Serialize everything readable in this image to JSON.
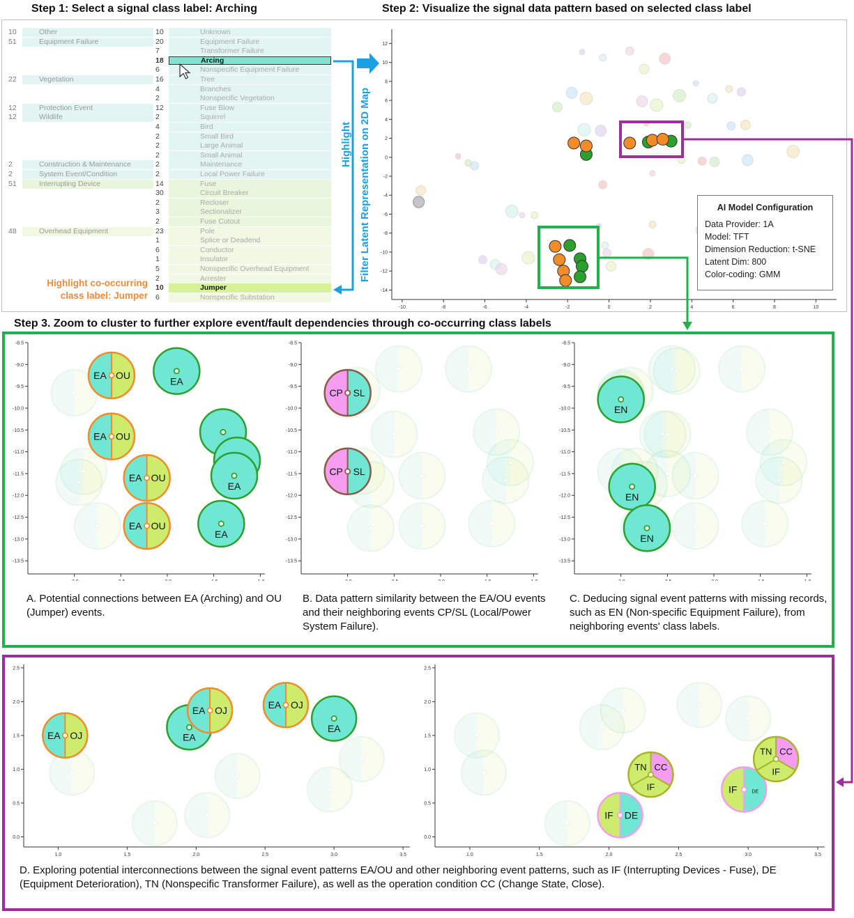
{
  "step1": {
    "title": "Step 1: Select a signal class label: Arching",
    "parents": [
      {
        "count": "10",
        "label": "Other",
        "row": 0,
        "color": "#e2f5f3"
      },
      {
        "count": "51",
        "label": "Equipment Failure",
        "row": 1,
        "color": "#e2f5f3"
      },
      {
        "count": "22",
        "label": "Vegetation",
        "row": 5,
        "color": "#e2f5f3"
      },
      {
        "count": "12",
        "label": "Protection Event",
        "row": 8,
        "color": "#e2f5f3"
      },
      {
        "count": "12",
        "label": "Wildlife",
        "row": 9,
        "color": "#e2f5f3"
      },
      {
        "count": "2",
        "label": "Construction & Maintenance",
        "row": 14,
        "color": "#e2f5f3"
      },
      {
        "count": "2",
        "label": "System Event/Condition",
        "row": 15,
        "color": "#e2f5f3"
      },
      {
        "count": "51",
        "label": "Interrupting Device",
        "row": 16,
        "color": "#eaf6dc"
      },
      {
        "count": "48",
        "label": "Overhead Equipment",
        "row": 21,
        "color": "#f1f8e3"
      }
    ],
    "children": [
      {
        "count": "10",
        "label": "Unknown",
        "color": "#e2f5f3"
      },
      {
        "count": "20",
        "label": "Equipment Failure",
        "color": "#e2f5f3"
      },
      {
        "count": "7",
        "label": "Transformer Failure",
        "color": "#e2f5f3"
      },
      {
        "count": "18",
        "label": "Arcing",
        "color": "#7fe3cf",
        "selected": true
      },
      {
        "count": "6",
        "label": "Nonspecific Equipment Failure",
        "color": "#e2f5f3"
      },
      {
        "count": "16",
        "label": "Tree",
        "color": "#e2f5f3"
      },
      {
        "count": "4",
        "label": "Branches",
        "color": "#e2f5f3"
      },
      {
        "count": "2",
        "label": "Nonspecific Vegetation",
        "color": "#e2f5f3"
      },
      {
        "count": "12",
        "label": "Fuse Blow",
        "color": "#e2f5f3"
      },
      {
        "count": "2",
        "label": "Squirrel",
        "color": "#e2f5f3"
      },
      {
        "count": "4",
        "label": "Bird",
        "color": "#e2f5f3"
      },
      {
        "count": "2",
        "label": "Small Bird",
        "color": "#e2f5f3"
      },
      {
        "count": "2",
        "label": "Large Animal",
        "color": "#e2f5f3"
      },
      {
        "count": "2",
        "label": "Small Animal",
        "color": "#e2f5f3"
      },
      {
        "count": "2",
        "label": "Maintenance",
        "color": "#e2f5f3"
      },
      {
        "count": "2",
        "label": "Local Power Failure",
        "color": "#e2f5f3"
      },
      {
        "count": "14",
        "label": "Fuse",
        "color": "#eaf6dc"
      },
      {
        "count": "30",
        "label": "Circuit Breaker",
        "color": "#eaf6dc"
      },
      {
        "count": "2",
        "label": "Recloser",
        "color": "#eaf6dc"
      },
      {
        "count": "3",
        "label": "Sectionalizer",
        "color": "#eaf6dc"
      },
      {
        "count": "2",
        "label": "Fuse Cutout",
        "color": "#eaf6dc"
      },
      {
        "count": "23",
        "label": "Pole",
        "color": "#f1f8e3"
      },
      {
        "count": "1",
        "label": "Splice or Deadend",
        "color": "#f1f8e3"
      },
      {
        "count": "6",
        "label": "Conductor",
        "color": "#f1f8e3"
      },
      {
        "count": "1",
        "label": "Insulator",
        "color": "#f1f8e3"
      },
      {
        "count": "5",
        "label": "Nonspecific Overhead Equipment",
        "color": "#f1f8e3"
      },
      {
        "count": "2",
        "label": "Arrester",
        "color": "#f1f8e3"
      },
      {
        "count": "10",
        "label": "Jumper",
        "color": "#d7f295",
        "cooccur": true
      },
      {
        "count": "6",
        "label": "Nonspecific Substation",
        "color": "#f1f8e3"
      }
    ],
    "highlight_note_line1": "Highlight co-occurring",
    "highlight_note_line2": "class label: Jumper",
    "highlight_label": "Highlight",
    "filter_label": "Filter Latent Representation on 2D Map"
  },
  "step2": {
    "title": "Step 2: Visualize the signal data pattern based on selected class label",
    "config": {
      "title": "AI Model Configuration",
      "lines": [
        "Data Provider: 1A",
        "Model: TFT",
        "Dimension Reduction: t-SNE",
        "Latent Dim: 800",
        "Color-coding: GMM"
      ]
    }
  },
  "step3": {
    "title": "Step 3. Zoom to cluster to further explore event/fault dependencies through co-occurring class labels",
    "caption_a": "A. Potential connections between EA (Arching) and OU (Jumper) events.",
    "caption_b": "B. Data pattern similarity between the EA/OU events and their neighboring events CP/SL (Local/Power System Failure).",
    "caption_c": "C. Deducing signal event patterns with missing records, such as EN (Non-specific Equipment Failure), from neighboring events' class labels.",
    "caption_d": "D. Exploring potential interconnections between the signal event patterns EA/OU and other neighboring event patterns, such as IF (Interrupting Devices - Fuse), DE (Equipment Deterioration), TN (Nonspecific Transformer Failure), as well as the operation condition CC (Change State, Close)."
  },
  "colors": {
    "orange": "#f28c28",
    "green": "#2ca02c",
    "teal": "#6fe7d3",
    "lime": "#cdec6b",
    "pink": "#f39cf0",
    "blue": "#1ba1e2",
    "purple": "#9b2f9b",
    "boxgreen": "#21b04b"
  },
  "chart_data": [
    {
      "type": "scatter",
      "name_ref": "Step 2 map",
      "xlim": [
        -10.5,
        11
      ],
      "ylim": [
        -15,
        13.5
      ],
      "xticks": [
        -10,
        -8,
        -6,
        -4,
        -2,
        0,
        2,
        4,
        6,
        8,
        10
      ],
      "yticks": [
        -14,
        -12,
        -10,
        -8,
        -6,
        -4,
        -2,
        0,
        2,
        4,
        6,
        8,
        10,
        12
      ],
      "highlighted_orange": [
        [
          -1.7,
          1.5
        ],
        [
          -1.1,
          1.2
        ],
        [
          1.0,
          1.5
        ],
        [
          2.1,
          1.8
        ],
        [
          2.6,
          1.9
        ],
        [
          -2.6,
          -9.4
        ],
        [
          -2.4,
          -10.8
        ],
        [
          -2.2,
          -12.0
        ],
        [
          -2.1,
          -13.0
        ]
      ],
      "highlighted_green": [
        [
          -1.1,
          0.3
        ],
        [
          1.9,
          1.6
        ],
        [
          3.0,
          1.7
        ],
        [
          -1.9,
          -9.3
        ],
        [
          -1.4,
          -10.7
        ],
        [
          -1.3,
          -11.5
        ],
        [
          -1.4,
          -12.6
        ]
      ],
      "faded": [
        [
          -7.3,
          0.1
        ],
        [
          -6.8,
          -0.6
        ],
        [
          -6.5,
          -0.9
        ],
        [
          -9.1,
          -3.5
        ],
        [
          -9.2,
          -4.8
        ],
        [
          -4.7,
          -5.7
        ],
        [
          -4.2,
          -6.1
        ],
        [
          -3.6,
          -6.1
        ],
        [
          -0.3,
          -2.9
        ],
        [
          -2.5,
          5.3
        ],
        [
          -1.8,
          6.8
        ],
        [
          -1.1,
          6.2
        ],
        [
          -1.3,
          11.1
        ],
        [
          -0.3,
          10.5
        ],
        [
          1.0,
          11.2
        ],
        [
          1.7,
          9.3
        ],
        [
          2.7,
          10.4
        ],
        [
          3.4,
          6.5
        ],
        [
          4.2,
          7.8
        ],
        [
          5.8,
          7.2
        ],
        [
          6.4,
          6.9
        ],
        [
          5.0,
          6.2
        ],
        [
          1.6,
          5.9
        ],
        [
          2.3,
          5.5
        ],
        [
          1.8,
          3.6
        ],
        [
          3.8,
          3.4
        ],
        [
          5.9,
          3.3
        ],
        [
          6.6,
          3.4
        ],
        [
          -0.4,
          2.8
        ],
        [
          -1.2,
          2.9
        ],
        [
          2.1,
          -1.7
        ],
        [
          3.5,
          -0.3
        ],
        [
          4.5,
          -0.4
        ],
        [
          5.1,
          -0.5
        ],
        [
          6.7,
          -0.3
        ],
        [
          8.9,
          0.6
        ],
        [
          -0.5,
          -7.3
        ],
        [
          -0.2,
          -9.3
        ],
        [
          -0.1,
          -10.1
        ],
        [
          0.1,
          -11.5
        ],
        [
          1.9,
          -10.2
        ],
        [
          4.5,
          -7.7
        ],
        [
          5.6,
          -8.4
        ],
        [
          2.1,
          -7.1
        ],
        [
          -6.1,
          -10.8
        ],
        [
          -5.5,
          -11.3
        ],
        [
          -5.2,
          -11.8
        ],
        [
          -3.9,
          -10.6
        ]
      ],
      "xlabel": "",
      "ylabel": ""
    },
    {
      "type": "scatter",
      "name_ref": "Panel A",
      "xlim": [
        -3.5,
        -0.95
      ],
      "ylim": [
        -13.8,
        -8.5
      ],
      "xticks": [
        -3.0,
        -2.5,
        -2.0,
        -1.5,
        -1.0
      ],
      "xticklabels": [
        "-3.0",
        "-2.5",
        "-2.0",
        "-1.5",
        "-1.0"
      ],
      "yticks": [
        -13.5,
        -13.0,
        -12.5,
        -12.0,
        -11.5,
        -11.0,
        -10.5,
        -10.0,
        -9.5,
        -9.0,
        -8.5
      ],
      "yticklabels": [
        "-13.5",
        "-13.0",
        "-12.5",
        "-12.0",
        "-11.5",
        "-11.0",
        "-10.5",
        "-10.0",
        "-9.5",
        "-9.0",
        "-8.5"
      ],
      "points": [
        {
          "x": -2.6,
          "y": -9.25,
          "kind": "split",
          "left": "teal",
          "right": "lime",
          "border": "orange",
          "ll": "EA",
          "rl": "OU"
        },
        {
          "x": -1.9,
          "y": -9.15,
          "kind": "full",
          "fill": "teal",
          "border": "green",
          "bl": "EA"
        },
        {
          "x": -2.6,
          "y": -10.65,
          "kind": "split",
          "left": "teal",
          "right": "lime",
          "border": "orange",
          "ll": "EA",
          "rl": "OU"
        },
        {
          "x": -2.22,
          "y": -11.6,
          "kind": "split",
          "left": "teal",
          "right": "lime",
          "border": "orange",
          "ll": "EA",
          "rl": "OU"
        },
        {
          "x": -2.22,
          "y": -12.7,
          "kind": "split",
          "left": "teal",
          "right": "lime",
          "border": "orange",
          "ll": "EA",
          "rl": "OU"
        },
        {
          "x": -1.4,
          "y": -10.55,
          "kind": "full",
          "fill": "teal",
          "border": "green",
          "bl": ""
        },
        {
          "x": -1.25,
          "y": -11.2,
          "kind": "full",
          "fill": "teal",
          "border": "green",
          "bl": "EA"
        },
        {
          "x": -1.28,
          "y": -11.55,
          "kind": "full",
          "fill": "teal",
          "border": "green",
          "bl": "EA"
        },
        {
          "x": -1.42,
          "y": -12.65,
          "kind": "full",
          "fill": "teal",
          "border": "green",
          "bl": "EA"
        }
      ]
    },
    {
      "type": "scatter",
      "name_ref": "Panel B",
      "xlim": [
        -3.5,
        -0.95
      ],
      "ylim": [
        -13.8,
        -8.5
      ],
      "xticks": [
        -3.0,
        -2.5,
        -2.0,
        -1.5,
        -1.0
      ],
      "xticklabels": [
        "-3.0",
        "-2.5",
        "-2.0",
        "-1.5",
        "-1.0"
      ],
      "yticks": [
        -13.5,
        -13.0,
        -12.5,
        -12.0,
        -11.5,
        -11.0,
        -10.5,
        -10.0,
        -9.5,
        -9.0,
        -8.5
      ],
      "yticklabels": [
        "-13.5",
        "-13.0",
        "-12.5",
        "-12.0",
        "-11.5",
        "-11.0",
        "-10.5",
        "-10.0",
        "-9.5",
        "-9.0",
        "-8.5"
      ],
      "points": [
        {
          "x": -3.0,
          "y": -9.65,
          "kind": "split",
          "left": "pink",
          "right": "teal",
          "border": "brown",
          "ll": "CP",
          "rl": "SL"
        },
        {
          "x": -3.0,
          "y": -11.45,
          "kind": "split",
          "left": "pink",
          "right": "teal",
          "border": "brown",
          "ll": "CP",
          "rl": "SL"
        }
      ]
    },
    {
      "type": "scatter",
      "name_ref": "Panel C",
      "xlim": [
        -3.5,
        -0.95
      ],
      "ylim": [
        -13.8,
        -8.5
      ],
      "xticks": [
        -3.0,
        -2.5,
        -2.0,
        -1.5,
        -1.0
      ],
      "xticklabels": [
        "-3.0",
        "-2.5",
        "-2.0",
        "-1.5",
        "-1.0"
      ],
      "yticks": [
        -13.5,
        -13.0,
        -12.5,
        -12.0,
        -11.5,
        -11.0,
        -10.5,
        -10.0,
        -9.5,
        -9.0,
        -8.5
      ],
      "yticklabels": [
        "-13.5",
        "-13.0",
        "-12.5",
        "-12.0",
        "-11.5",
        "-11.0",
        "-10.5",
        "-10.0",
        "-9.5",
        "-9.0",
        "-8.5"
      ],
      "points": [
        {
          "x": -3.0,
          "y": -9.8,
          "kind": "full",
          "fill": "teal",
          "border": "green",
          "bl": "EN"
        },
        {
          "x": -2.88,
          "y": -11.8,
          "kind": "full",
          "fill": "teal",
          "border": "green",
          "bl": "EN"
        },
        {
          "x": -2.72,
          "y": -12.75,
          "kind": "full",
          "fill": "teal",
          "border": "green",
          "bl": "EN"
        }
      ]
    },
    {
      "type": "scatter",
      "name_ref": "Panel D left",
      "xlim": [
        0.75,
        3.55
      ],
      "ylim": [
        -0.15,
        2.55
      ],
      "xticks": [
        1.0,
        1.5,
        2.0,
        2.5,
        3.0,
        3.5
      ],
      "xticklabels": [
        "1.0",
        "1.5",
        "2.0",
        "2.5",
        "3.0",
        "3.5"
      ],
      "yticks": [
        0.0,
        0.5,
        1.0,
        1.5,
        2.0,
        2.5
      ],
      "yticklabels": [
        "0.0",
        "0.5",
        "1.0",
        "1.5",
        "2.0",
        "2.5"
      ],
      "points": [
        {
          "x": 1.05,
          "y": 1.5,
          "kind": "split",
          "left": "teal",
          "right": "lime",
          "border": "orange",
          "ll": "EA",
          "rl": "OJ"
        },
        {
          "x": 1.95,
          "y": 1.62,
          "kind": "full",
          "fill": "teal",
          "border": "green",
          "bl": "EA"
        },
        {
          "x": 2.1,
          "y": 1.87,
          "kind": "split",
          "left": "teal",
          "right": "lime",
          "border": "orange",
          "ll": "EA",
          "rl": "OJ"
        },
        {
          "x": 2.65,
          "y": 1.95,
          "kind": "split",
          "left": "teal",
          "right": "lime",
          "border": "orange",
          "ll": "EA",
          "rl": "OJ"
        },
        {
          "x": 3.0,
          "y": 1.75,
          "kind": "full",
          "fill": "teal",
          "border": "green",
          "bl": "EA"
        }
      ]
    },
    {
      "type": "scatter",
      "name_ref": "Panel D right",
      "xlim": [
        0.75,
        3.55
      ],
      "ylim": [
        -0.15,
        2.55
      ],
      "xticks": [
        1.0,
        1.5,
        2.0,
        2.5,
        3.0,
        3.5
      ],
      "xticklabels": [
        "1.0",
        "1.5",
        "2.0",
        "2.5",
        "3.0",
        "3.5"
      ],
      "yticks": [
        0.0,
        0.5,
        1.0,
        1.5,
        2.0,
        2.5
      ],
      "yticklabels": [
        "0.0",
        "0.5",
        "1.0",
        "1.5",
        "2.0",
        "2.5"
      ],
      "points": [
        {
          "x": 2.08,
          "y": 0.32,
          "kind": "split",
          "left": "lime",
          "right": "teal",
          "border": "pink",
          "ll": "IF",
          "rl": "DE"
        },
        {
          "x": 2.3,
          "y": 0.92,
          "kind": "tri",
          "border": "olive",
          "ll": "TN",
          "rl": "CC",
          "bl": "IF"
        },
        {
          "x": 2.97,
          "y": 0.7,
          "kind": "split",
          "left": "lime",
          "right": "teal",
          "border": "pink",
          "ll": "IF",
          "rl": "DE"
        },
        {
          "x": 3.2,
          "y": 1.15,
          "kind": "tri",
          "border": "olive",
          "ll": "TN",
          "rl": "CC",
          "bl": "IF"
        }
      ]
    }
  ]
}
